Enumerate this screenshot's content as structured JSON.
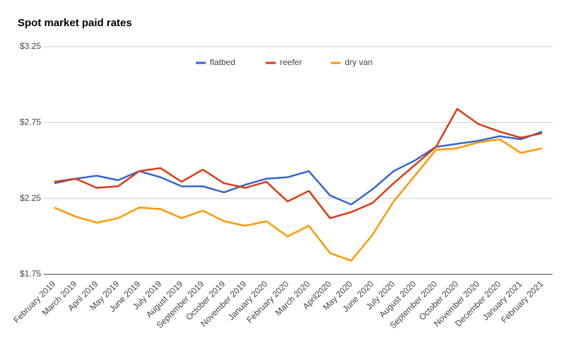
{
  "chart_data": {
    "type": "line",
    "title": "Spot market paid rates",
    "categories": [
      "February 2019",
      "March 2019",
      "April 2019",
      "May 2019",
      "June 2019",
      "July 2019",
      "August 2019",
      "September 2019",
      "October 2019",
      "November 2019",
      "January 2020",
      "February 2020",
      "March 2020",
      "April2020",
      "May 2020",
      "June 2020",
      "July 2020",
      "August 2020",
      "September 2020",
      "October 2020",
      "November 2020",
      "December 2020",
      "January 2021",
      "February 2021"
    ],
    "series": [
      {
        "name": "flatbed",
        "color": "#3366cc",
        "values": [
          2.35,
          2.38,
          2.4,
          2.37,
          2.43,
          2.39,
          2.33,
          2.33,
          2.29,
          2.34,
          2.38,
          2.39,
          2.43,
          2.27,
          2.21,
          2.31,
          2.43,
          2.5,
          2.59,
          2.61,
          2.63,
          2.66,
          2.64,
          2.69
        ]
      },
      {
        "name": "reefer",
        "color": "#dc3912",
        "values": [
          2.36,
          2.38,
          2.32,
          2.33,
          2.43,
          2.45,
          2.36,
          2.44,
          2.35,
          2.32,
          2.36,
          2.23,
          2.3,
          2.12,
          2.16,
          2.22,
          2.35,
          2.47,
          2.59,
          2.84,
          2.74,
          2.69,
          2.65,
          2.68
        ]
      },
      {
        "name": "dry van",
        "color": "#ff9900",
        "values": [
          2.19,
          2.13,
          2.09,
          2.12,
          2.19,
          2.18,
          2.12,
          2.17,
          2.1,
          2.07,
          2.1,
          2.0,
          2.07,
          1.89,
          1.84,
          2.01,
          2.23,
          2.4,
          2.57,
          2.58,
          2.62,
          2.64,
          2.55,
          2.58
        ]
      }
    ],
    "ylim": [
      1.75,
      3.25
    ],
    "yticks": [
      {
        "value": 1.75,
        "label": "$1.75"
      },
      {
        "value": 2.25,
        "label": "$2.25"
      },
      {
        "value": 2.75,
        "label": "$2.75"
      },
      {
        "value": 3.25,
        "label": "$3.25"
      }
    ],
    "grid": true,
    "legend": "top"
  }
}
